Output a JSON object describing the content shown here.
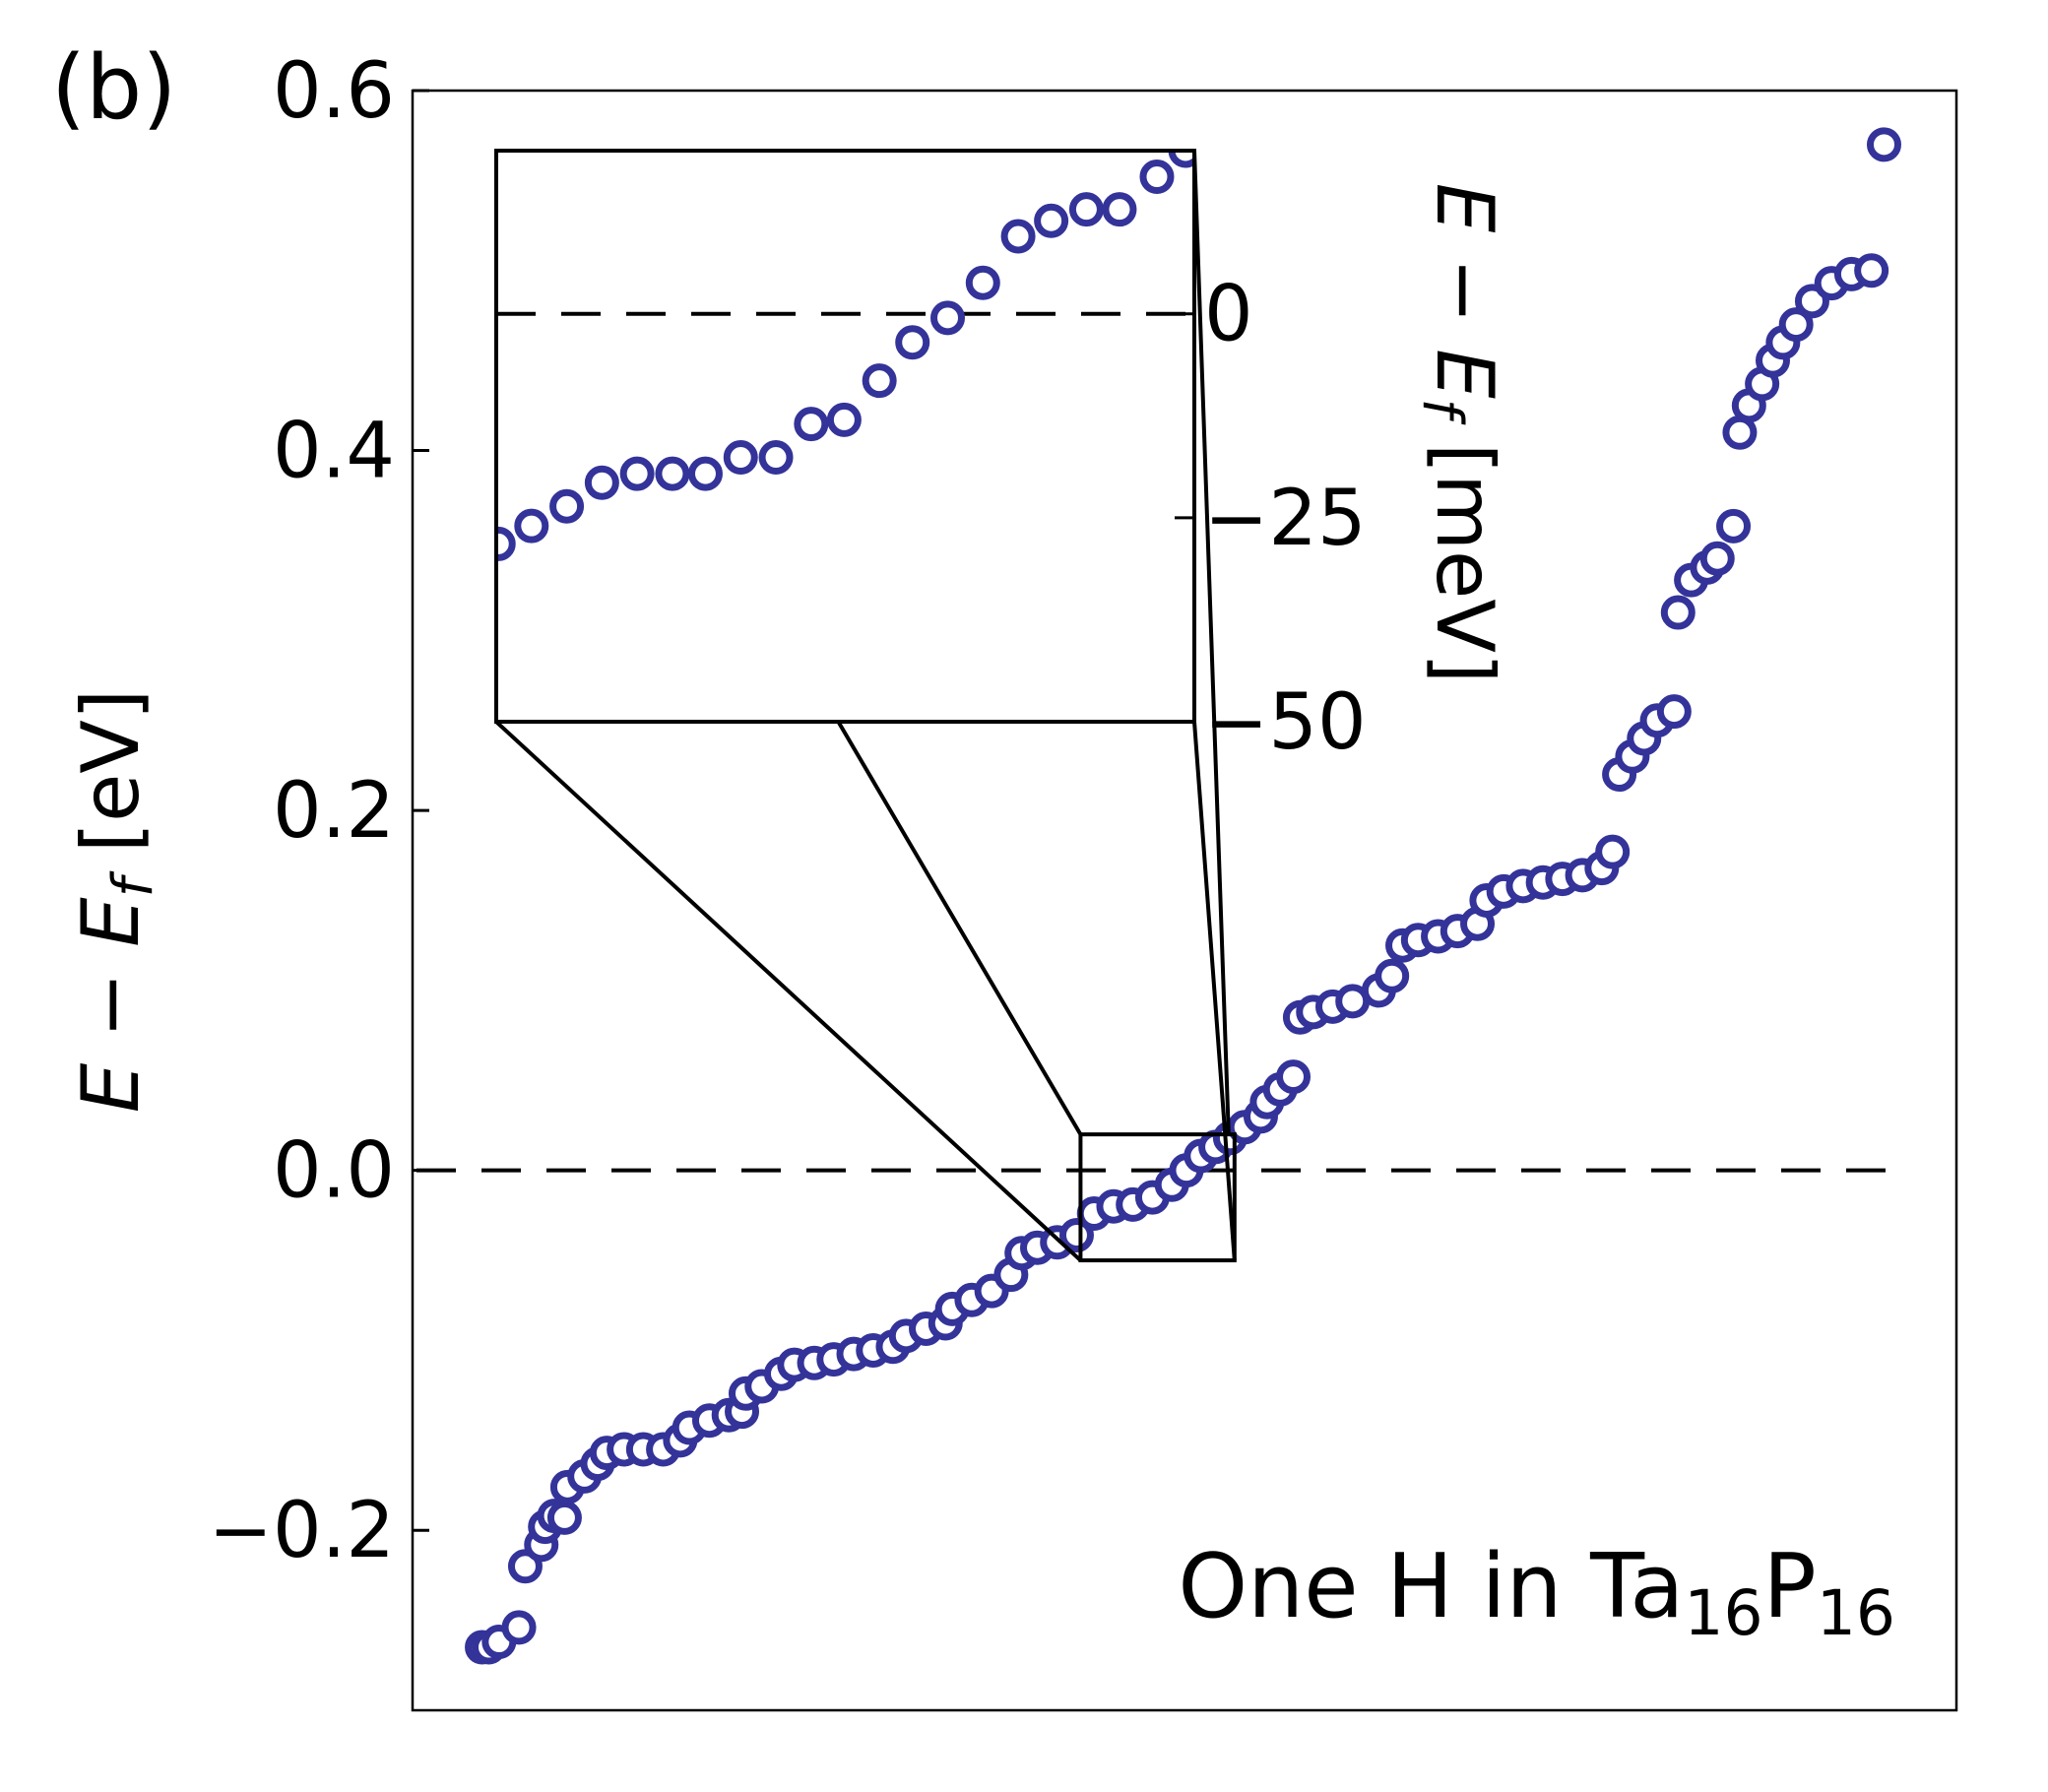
{
  "chart_data": {
    "type": "scatter",
    "panel_label": "(b)",
    "ylabel": [
      "E",
      " − ",
      "E",
      "f",
      " [eV]"
    ],
    "annotation": [
      "One H in Ta",
      "16",
      "P",
      "16"
    ],
    "color": "#333399",
    "xlim": [
      -14.3,
      303.5
    ],
    "ylim": [
      -0.3,
      0.6
    ],
    "yticks": [
      {
        "value": 0.6,
        "label": "0.6"
      },
      {
        "value": 0.4,
        "label": "0.4"
      },
      {
        "value": 0.2,
        "label": "0.2"
      },
      {
        "value": 0.0,
        "label": "0.0"
      },
      {
        "value": -0.2,
        "label": "−0.2"
      }
    ],
    "hline": 0,
    "zoom_ylim": [
      -0.05,
      0.02
    ],
    "x": [
      0,
      1.4,
      3.5,
      7.6,
      8.9,
      12.2,
      13,
      14.9,
      17,
      17.6,
      21.1,
      23.8,
      25.7,
      29.2,
      33.2,
      37.3,
      40.8,
      42.7,
      46.8,
      50.8,
      53.5,
      54.3,
      57.6,
      61.6,
      64.3,
      68.4,
      72.4,
      76.5,
      80.5,
      84.6,
      87.3,
      91.4,
      95.4,
      96.8,
      100.8,
      104.9,
      108.9,
      111.1,
      114.3,
      118.4,
      122.4,
      126,
      130,
      134,
      138,
      142,
      145,
      148,
      151,
      154,
      157,
      160.3,
      161.6,
      164.3,
      167,
      168.4,
      171.1,
      175.1,
      179.2,
      184.6,
      187.3,
      189.5,
      192.7,
      196.8,
      200.8,
      204.9,
      206.8,
      210.3,
      214.3,
      218.4,
      222.4,
      226.5,
      230.5,
      232.7,
      234.1,
      236.8,
      239.2,
      241.9,
      245.4,
      246.2,
      248.9,
      252.2,
      254.3,
      257.6,
      258.9,
      260.8,
      263.5,
      265.7,
      267.8,
      270.5,
      273.8,
      277.8,
      281.9,
      286,
      288.6
    ],
    "values": [
      -0.265,
      -0.265,
      -0.262,
      -0.254,
      -0.22,
      -0.208,
      -0.198,
      -0.192,
      -0.193,
      -0.176,
      -0.17,
      -0.163,
      -0.157,
      -0.155,
      -0.155,
      -0.155,
      -0.15,
      -0.143,
      -0.139,
      -0.136,
      -0.134,
      -0.124,
      -0.12,
      -0.113,
      -0.108,
      -0.107,
      -0.105,
      -0.102,
      -0.1,
      -0.098,
      -0.092,
      -0.088,
      -0.085,
      -0.077,
      -0.072,
      -0.067,
      -0.058,
      -0.046,
      -0.043,
      -0.04,
      -0.036,
      -0.024,
      -0.02,
      -0.019,
      -0.015,
      -0.008,
      0.0,
      0.008,
      0.013,
      0.018,
      0.024,
      0.03,
      0.038,
      0.045,
      0.052,
      0.085,
      0.088,
      0.091,
      0.094,
      0.1,
      0.108,
      0.125,
      0.128,
      0.13,
      0.133,
      0.137,
      0.15,
      0.155,
      0.158,
      0.16,
      0.162,
      0.164,
      0.168,
      0.177,
      0.22,
      0.23,
      0.24,
      0.25,
      0.255,
      0.31,
      0.328,
      0.335,
      0.34,
      0.358,
      0.41,
      0.425,
      0.437,
      0.45,
      0.46,
      0.47,
      0.483,
      0.493,
      0.498,
      0.5,
      0.57
    ],
    "inset": {
      "ylabel": [
        "E",
        " − ",
        "E",
        "f",
        " [meV]"
      ],
      "xlim": [
        123.2,
        154.9
      ],
      "ylim": [
        -50,
        20
      ],
      "yticks": [
        0,
        {
          "value": -25,
          "label": "−25"
        },
        {
          "value": -50,
          "label": "−50"
        }
      ],
      "hline": 0,
      "x": [
        123.3,
        124.8,
        126.4,
        128.0,
        129.6,
        131.2,
        132.7,
        134.3,
        135.9,
        137.5,
        139.0,
        140.6,
        142.1,
        143.7,
        145.3,
        146.9,
        148.4,
        150.0,
        151.5,
        153.2,
        154.5
      ],
      "values": [
        -28.2,
        -26,
        -23.6,
        -20.7,
        -19.6,
        -19.6,
        -19.6,
        -17.6,
        -17.6,
        -13.5,
        -13,
        -8.2,
        -3.5,
        -0.5,
        3.8,
        9.5,
        11.4,
        12.8,
        12.8,
        16.8,
        20
      ]
    }
  }
}
